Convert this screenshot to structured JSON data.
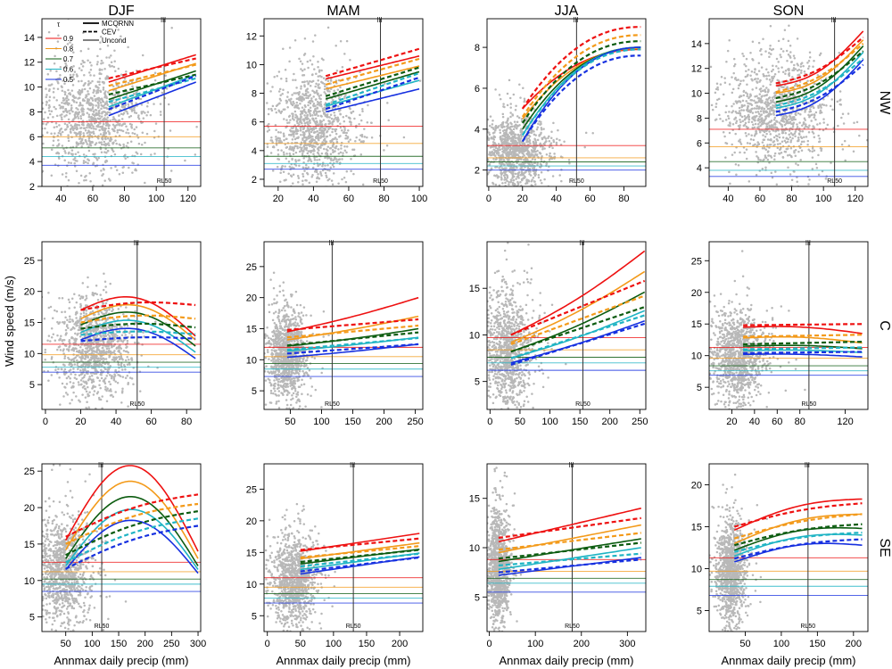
{
  "figure": {
    "seasons": [
      "DJF",
      "MAM",
      "JJA",
      "SON"
    ],
    "regions": [
      "NW",
      "C",
      "SE"
    ],
    "ylabel": "Wind speed (m/s)",
    "xlabel": "Annmax daily precip (mm)",
    "rl_label": "RL50"
  },
  "legend": {
    "tau_symbol": "τ",
    "taus": [
      "0.9",
      "0.8",
      "0.7",
      "0.6",
      "0.5"
    ],
    "methods": [
      "MCQRNN",
      "CEV",
      "Uncond"
    ]
  },
  "colors": {
    "tau_0.9": "#ee1111",
    "tau_0.8": "#f39a1a",
    "tau_0.7": "#0c5c10",
    "tau_0.6": "#1fb4c4",
    "tau_0.5": "#1630e0",
    "points": "#b8b8b8"
  },
  "chart_data": [
    {
      "type": "scatter",
      "season": "DJF",
      "region": "NW",
      "xlim": [
        28,
        128
      ],
      "ylim": [
        2,
        15.5
      ],
      "xticks": [
        40,
        60,
        80,
        100,
        120
      ],
      "yticks": [
        2,
        4,
        6,
        8,
        10,
        12,
        14
      ],
      "rl50": 105,
      "uncond": [
        7.2,
        6.0,
        5.1,
        4.4,
        3.7
      ],
      "px0": 70,
      "px1": 125,
      "mcqrnn": [
        [
          10.4,
          12.6,
          0
        ],
        [
          9.7,
          11.9,
          0
        ],
        [
          9.0,
          11.3,
          0
        ],
        [
          8.4,
          11.0,
          0
        ],
        [
          7.7,
          10.4,
          0
        ]
      ],
      "cev": [
        [
          10.7,
          12.3,
          0
        ],
        [
          10.1,
          11.8,
          0
        ],
        [
          9.4,
          11.0,
          0
        ],
        [
          8.8,
          10.7,
          0
        ],
        [
          8.2,
          10.9,
          0
        ]
      ],
      "scatter_center": [
        60,
        7.5
      ],
      "scatter_spread": [
        17,
        2.2
      ]
    },
    {
      "type": "scatter",
      "season": "MAM",
      "region": "NW",
      "xlim": [
        12,
        102
      ],
      "ylim": [
        1.5,
        13.2
      ],
      "xticks": [
        20,
        40,
        60,
        80,
        100
      ],
      "yticks": [
        2,
        4,
        6,
        8,
        10,
        12
      ],
      "rl50": 78,
      "uncond": [
        5.7,
        4.5,
        3.6,
        3.1,
        2.7
      ],
      "px0": 47,
      "px1": 100,
      "mcqrnn": [
        [
          9.0,
          10.6,
          0
        ],
        [
          8.3,
          9.9,
          0
        ],
        [
          7.6,
          9.5,
          0
        ],
        [
          7.1,
          8.9,
          0
        ],
        [
          6.7,
          8.3,
          0
        ]
      ],
      "cev": [
        [
          9.2,
          11.1,
          0
        ],
        [
          8.6,
          10.4,
          0
        ],
        [
          7.8,
          9.8,
          0
        ],
        [
          7.2,
          9.4,
          0
        ],
        [
          6.9,
          9.1,
          0
        ]
      ],
      "scatter_center": [
        40,
        5.6
      ],
      "scatter_spread": [
        12,
        2.0
      ]
    },
    {
      "type": "scatter",
      "season": "JJA",
      "region": "NW",
      "xlim": [
        -1,
        93
      ],
      "ylim": [
        1.2,
        9.4
      ],
      "xticks": [
        0,
        20,
        40,
        60,
        80
      ],
      "yticks": [
        2,
        4,
        6,
        8
      ],
      "rl50": 52,
      "uncond": [
        3.2,
        2.6,
        2.4,
        2.2,
        2.0
      ],
      "px0": 20,
      "px1": 90,
      "mcqrnn": [
        [
          5.0,
          7.9,
          2.4
        ],
        [
          4.5,
          7.95,
          1.8
        ],
        [
          4.0,
          8.0,
          1.3
        ],
        [
          3.7,
          8.0,
          0.8
        ],
        [
          3.4,
          8.0,
          0.4
        ]
      ],
      "cev": [
        [
          5.0,
          9.0,
          2.0
        ],
        [
          4.6,
          8.6,
          1.5
        ],
        [
          4.3,
          8.3,
          1.0
        ],
        [
          3.7,
          7.9,
          0.3
        ],
        [
          3.4,
          7.6,
          0.1
        ]
      ],
      "scatter_center": [
        15,
        2.9
      ],
      "scatter_spread": [
        10,
        0.9
      ]
    },
    {
      "type": "scatter",
      "season": "SON",
      "region": "NW",
      "xlim": [
        28,
        128
      ],
      "ylim": [
        2.5,
        16
      ],
      "xticks": [
        40,
        60,
        80,
        100,
        120
      ],
      "yticks": [
        4,
        6,
        8,
        10,
        12,
        14
      ],
      "rl50": 107,
      "uncond": [
        7.1,
        5.7,
        4.5,
        3.8,
        3.3
      ],
      "px0": 70,
      "px1": 125,
      "mcqrnn": [
        [
          10.6,
          15.0,
          -1.0
        ],
        [
          10.0,
          14.3,
          -1.0
        ],
        [
          9.3,
          13.8,
          -1.0
        ],
        [
          8.8,
          13.3,
          -1.0
        ],
        [
          8.2,
          12.7,
          -1.0
        ]
      ],
      "cev": [
        [
          10.8,
          14.5,
          -0.7
        ],
        [
          10.1,
          14.0,
          -0.7
        ],
        [
          9.6,
          13.4,
          -0.7
        ],
        [
          9.0,
          12.8,
          -0.7
        ],
        [
          8.5,
          12.3,
          -0.7
        ]
      ],
      "scatter_center": [
        70,
        8.5
      ],
      "scatter_spread": [
        16,
        2.3
      ]
    },
    {
      "type": "scatter",
      "season": "DJF",
      "region": "C",
      "xlim": [
        -2,
        88
      ],
      "ylim": [
        1,
        28
      ],
      "xticks": [
        0,
        20,
        40,
        60,
        80
      ],
      "yticks": [
        5,
        10,
        15,
        20,
        25
      ],
      "rl50": 52,
      "uncond": [
        11.5,
        9.8,
        8.6,
        7.8,
        7.0
      ],
      "px0": 20,
      "px1": 85,
      "mcqrnn": [
        [
          17.0,
          12.8,
          4.0
        ],
        [
          15.6,
          12.2,
          3.8
        ],
        [
          14.6,
          11.2,
          3.6
        ],
        [
          13.4,
          10.2,
          3.4
        ],
        [
          12.2,
          9.2,
          3.2
        ]
      ],
      "cev": [
        [
          17.0,
          17.8,
          0.8
        ],
        [
          15.0,
          15.6,
          0.8
        ],
        [
          14.0,
          14.2,
          0.7
        ],
        [
          13.0,
          13.1,
          0.5
        ],
        [
          12.0,
          12.4,
          0.4
        ]
      ],
      "scatter_center": [
        28,
        11
      ],
      "scatter_spread": [
        10,
        4
      ]
    },
    {
      "type": "scatter",
      "season": "MAM",
      "region": "C",
      "xlim": [
        8,
        262
      ],
      "ylim": [
        2,
        29
      ],
      "xticks": [
        50,
        100,
        150,
        200,
        250
      ],
      "yticks": [
        5,
        10,
        15,
        20,
        25
      ],
      "rl50": 117,
      "uncond": [
        12.0,
        10.5,
        9.4,
        8.5,
        7.3
      ],
      "px0": 45,
      "px1": 255,
      "mcqrnn": [
        [
          14.5,
          20.0,
          -0.3
        ],
        [
          13.2,
          17.0,
          -0.2
        ],
        [
          12.2,
          15.0,
          -0.2
        ],
        [
          11.4,
          13.6,
          -0.1
        ],
        [
          10.4,
          12.5,
          -0.1
        ]
      ],
      "cev": [
        [
          14.8,
          16.5,
          0
        ],
        [
          13.6,
          15.5,
          0
        ],
        [
          12.3,
          14.4,
          0
        ],
        [
          11.6,
          13.5,
          0
        ],
        [
          11.0,
          12.5,
          0
        ]
      ],
      "scatter_center": [
        45,
        10.5
      ],
      "scatter_spread": [
        15,
        3.5
      ]
    },
    {
      "type": "scatter",
      "season": "JJA",
      "region": "C",
      "xlim": [
        -5,
        260
      ],
      "ylim": [
        2,
        20
      ],
      "xticks": [
        0,
        50,
        100,
        150,
        200,
        250
      ],
      "yticks": [
        5,
        10,
        15
      ],
      "rl50": 155,
      "uncond": [
        9.7,
        8.4,
        7.6,
        7.0,
        6.2
      ],
      "px0": 35,
      "px1": 258,
      "mcqrnn": [
        [
          10.0,
          19.0,
          -0.6
        ],
        [
          9.2,
          16.8,
          -0.5
        ],
        [
          8.2,
          14.6,
          -0.4
        ],
        [
          7.5,
          12.6,
          -0.3
        ],
        [
          7.0,
          11.5,
          -0.2
        ]
      ],
      "cev": [
        [
          10.0,
          15.8,
          0
        ],
        [
          9.0,
          14.2,
          0
        ],
        [
          8.2,
          13.0,
          0
        ],
        [
          7.5,
          12.1,
          0
        ],
        [
          6.8,
          11.2,
          0
        ]
      ],
      "scatter_center": [
        30,
        8.5
      ],
      "scatter_spread": [
        20,
        3
      ]
    },
    {
      "type": "scatter",
      "season": "SON",
      "region": "C",
      "xlim": [
        0,
        140
      ],
      "ylim": [
        1.5,
        28
      ],
      "xticks": [
        20,
        40,
        60,
        80,
        120
      ],
      "yticks": [
        5,
        10,
        15,
        20,
        25
      ],
      "rl50": 88,
      "uncond": [
        11.3,
        9.6,
        8.4,
        7.6,
        6.9
      ],
      "px0": 30,
      "px1": 135,
      "mcqrnn": [
        [
          14.5,
          13.5,
          0.5
        ],
        [
          12.8,
          12.0,
          0.5
        ],
        [
          11.5,
          11.1,
          0.3
        ],
        [
          10.8,
          10.5,
          0.2
        ],
        [
          10.2,
          9.8,
          0.2
        ]
      ],
      "cev": [
        [
          14.8,
          15.0,
          0
        ],
        [
          13.0,
          13.3,
          0
        ],
        [
          11.8,
          12.2,
          0
        ],
        [
          11.0,
          11.3,
          0
        ],
        [
          10.4,
          10.6,
          0
        ]
      ],
      "scatter_center": [
        25,
        10
      ],
      "scatter_spread": [
        12,
        3.5
      ]
    },
    {
      "type": "scatter",
      "season": "DJF",
      "region": "SE",
      "xlim": [
        5,
        305
      ],
      "ylim": [
        3,
        26
      ],
      "xticks": [
        50,
        100,
        150,
        200,
        250,
        300
      ],
      "yticks": [
        5,
        10,
        15,
        20,
        25
      ],
      "rl50": 118,
      "uncond": [
        12.5,
        11.2,
        10.2,
        9.5,
        8.5
      ],
      "px0": 50,
      "px1": 300,
      "mcqrnn": [
        [
          15.5,
          14.0,
          11.0
        ],
        [
          14.2,
          13.0,
          10.0
        ],
        [
          13.0,
          12.0,
          9.0
        ],
        [
          12.0,
          11.5,
          8.0
        ],
        [
          11.5,
          11.0,
          7.0
        ]
      ],
      "cev": [
        [
          16.0,
          21.8,
          1.0
        ],
        [
          15.0,
          20.5,
          1.0
        ],
        [
          13.5,
          19.5,
          1.0
        ],
        [
          12.5,
          18.5,
          1.0
        ],
        [
          11.6,
          17.5,
          1.0
        ]
      ],
      "scatter_center": [
        45,
        11.5
      ],
      "scatter_spread": [
        25,
        3.5
      ]
    },
    {
      "type": "scatter",
      "season": "MAM",
      "region": "SE",
      "xlim": [
        -5,
        235
      ],
      "ylim": [
        2.5,
        29
      ],
      "xticks": [
        0,
        50,
        100,
        150,
        200
      ],
      "yticks": [
        5,
        10,
        15,
        20,
        25
      ],
      "rl50": 130,
      "uncond": [
        11.0,
        9.5,
        8.5,
        7.8,
        7.0
      ],
      "px0": 50,
      "px1": 230,
      "mcqrnn": [
        [
          15.2,
          18.0,
          0
        ],
        [
          14.0,
          16.5,
          0
        ],
        [
          13.2,
          15.5,
          0
        ],
        [
          12.3,
          14.9,
          0
        ],
        [
          11.6,
          14.3,
          0
        ]
      ],
      "cev": [
        [
          15.4,
          17.2,
          0
        ],
        [
          14.2,
          16.0,
          0
        ],
        [
          13.5,
          15.4,
          0
        ],
        [
          12.8,
          14.8,
          0
        ],
        [
          12.0,
          14.2,
          0
        ]
      ],
      "scatter_center": [
        40,
        10.5
      ],
      "scatter_spread": [
        15,
        3.5
      ]
    },
    {
      "type": "scatter",
      "season": "JJA",
      "region": "SE",
      "xlim": [
        -5,
        340
      ],
      "ylim": [
        1.5,
        18.5
      ],
      "xticks": [
        0,
        100,
        200,
        300
      ],
      "yticks": [
        5,
        10,
        15
      ],
      "rl50": 180,
      "uncond": [
        8.8,
        7.6,
        6.9,
        6.4,
        5.5
      ],
      "px0": 20,
      "px1": 330,
      "mcqrnn": [
        [
          10.6,
          14.0,
          0
        ],
        [
          9.5,
          12.3,
          0
        ],
        [
          8.6,
          10.9,
          0
        ],
        [
          7.8,
          10.0,
          0
        ],
        [
          7.2,
          9.0,
          0
        ]
      ],
      "cev": [
        [
          11.0,
          13.0,
          0
        ],
        [
          9.8,
          11.5,
          0
        ],
        [
          8.9,
          10.5,
          0
        ],
        [
          8.2,
          9.4,
          0
        ],
        [
          7.5,
          8.8,
          0
        ]
      ],
      "scatter_center": [
        20,
        8
      ],
      "scatter_spread": [
        12,
        2.8
      ]
    },
    {
      "type": "scatter",
      "season": "SON",
      "region": "SE",
      "xlim": [
        0,
        220
      ],
      "ylim": [
        2.5,
        22.5
      ],
      "xticks": [
        50,
        100,
        150,
        200
      ],
      "yticks": [
        5,
        10,
        15,
        20
      ],
      "rl50": 137,
      "uncond": [
        11.3,
        9.7,
        8.7,
        7.9,
        6.8
      ],
      "px0": 35,
      "px1": 212,
      "mcqrnn": [
        [
          14.6,
          18.3,
          1.0
        ],
        [
          13.0,
          16.5,
          1.0
        ],
        [
          12.2,
          14.8,
          1.0
        ],
        [
          11.5,
          14.0,
          1.0
        ],
        [
          10.8,
          12.8,
          1.0
        ]
      ],
      "cev": [
        [
          15.0,
          17.8,
          0.5
        ],
        [
          13.6,
          16.5,
          0.5
        ],
        [
          12.8,
          15.3,
          0.5
        ],
        [
          12.0,
          14.3,
          0.5
        ],
        [
          11.2,
          13.5,
          0.5
        ]
      ],
      "scatter_center": [
        30,
        9.5
      ],
      "scatter_spread": [
        10,
        3
      ]
    }
  ]
}
